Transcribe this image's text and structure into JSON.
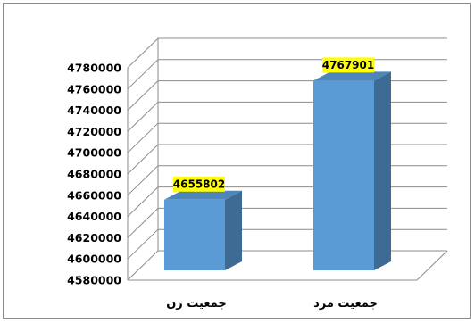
{
  "chart_data": {
    "type": "bar",
    "categories": [
      "جمعیت زن",
      "جمعیت مرد"
    ],
    "values": [
      4655802,
      4767901
    ],
    "data_labels": [
      "4655802",
      "4767901"
    ],
    "ylim": [
      4580000,
      4780000
    ],
    "yticks": [
      4580000,
      4600000,
      4620000,
      4640000,
      4660000,
      4680000,
      4700000,
      4720000,
      4740000,
      4760000,
      4780000
    ],
    "ytick_labels": [
      "4580000",
      "4600000",
      "4620000",
      "4640000",
      "4660000",
      "4680000",
      "4700000",
      "4720000",
      "4740000",
      "4760000",
      "4780000"
    ],
    "grid": true,
    "legend": "none",
    "style": "3d-column",
    "title": "",
    "xlabel": "",
    "ylabel": "",
    "colors": {
      "bar_front": "#5b9bd5",
      "bar_side": "#3d6b93",
      "bar_top": "#4f86b9",
      "data_label_bg": "#ffff00",
      "grid": "#8c8c8c"
    }
  }
}
